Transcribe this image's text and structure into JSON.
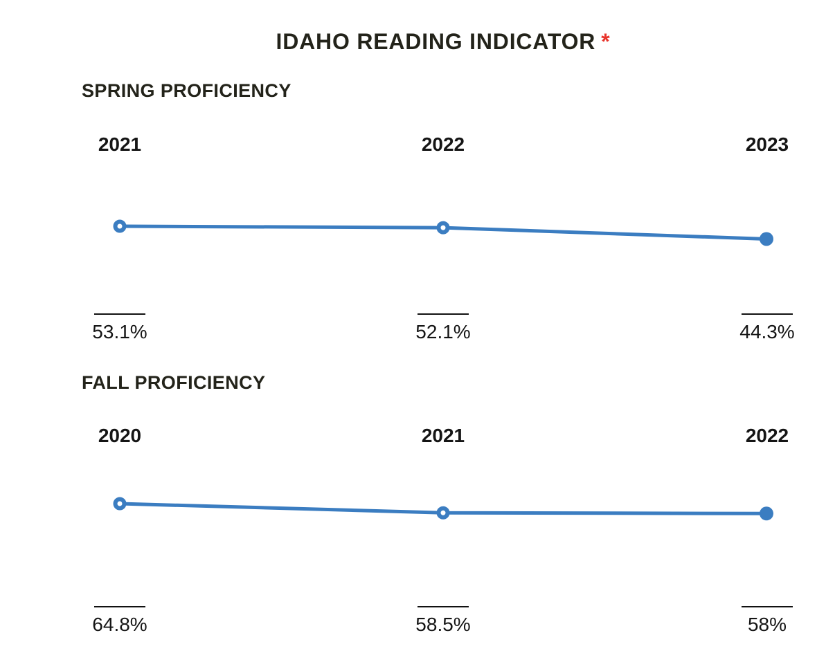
{
  "title": {
    "text": "IDAHO READING INDICATOR",
    "asterisk": "*"
  },
  "colors": {
    "line": "#3b7dc1",
    "title_text": "#23231a",
    "label_text": "#151515",
    "asterisk": "#e8342b",
    "background": "#ffffff"
  },
  "chart_data": [
    {
      "type": "line",
      "title": "SPRING PROFICIENCY",
      "categories": [
        "2021",
        "2022",
        "2023"
      ],
      "values": [
        53.1,
        52.1,
        44.3
      ],
      "value_labels": [
        "53.1%",
        "52.1%",
        "44.3%"
      ],
      "markers": [
        "open",
        "open",
        "filled"
      ],
      "xlabel": "",
      "ylabel": "",
      "grid": false,
      "legend": false
    },
    {
      "type": "line",
      "title": "FALL PROFICIENCY",
      "categories": [
        "2020",
        "2021",
        "2022"
      ],
      "values": [
        64.8,
        58.5,
        58
      ],
      "value_labels": [
        "64.8%",
        "58.5%",
        "58%"
      ],
      "markers": [
        "open",
        "open",
        "filled"
      ],
      "xlabel": "",
      "ylabel": "",
      "grid": false,
      "legend": false
    }
  ]
}
